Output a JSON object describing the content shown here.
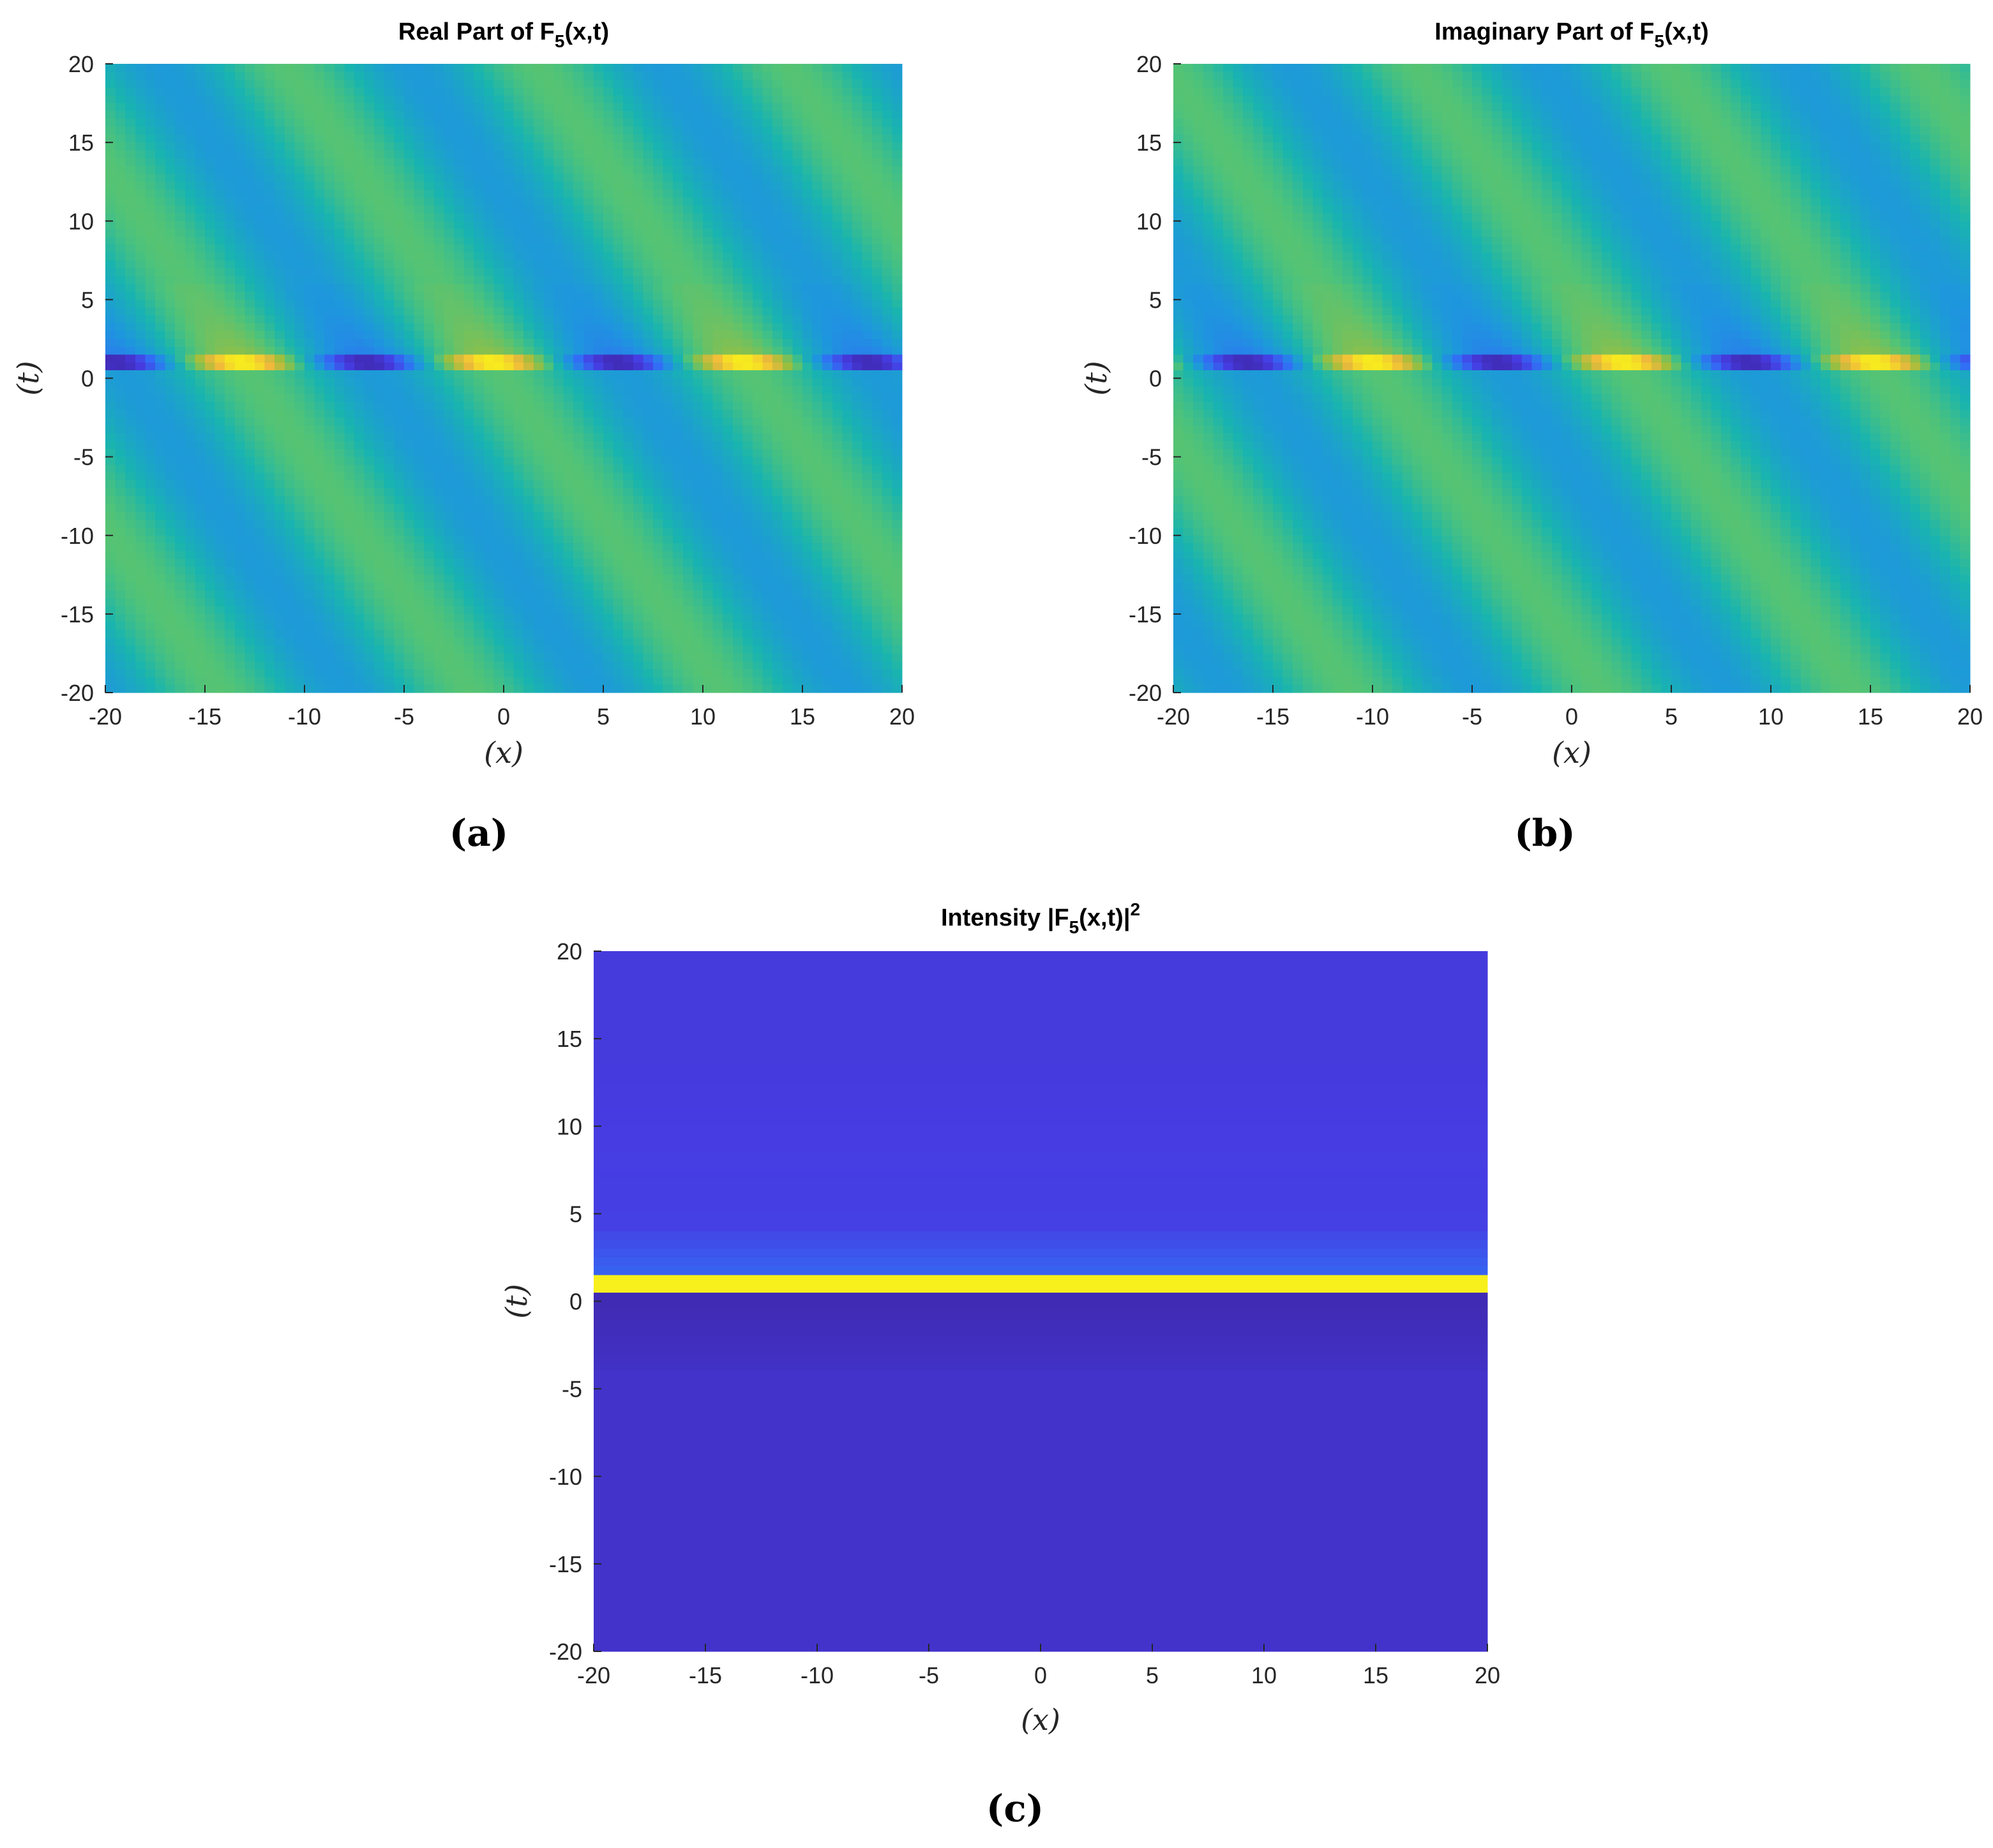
{
  "chart_data": [
    {
      "type": "heatmap",
      "panel": "(a)",
      "title": "Real Part of F5(x,t)",
      "title_parts": {
        "pre": "Real Part of F",
        "sub": "5",
        "post": "(x,t)",
        "sup": ""
      },
      "xlabel": "(x)",
      "ylabel": "(t)",
      "xlim": [
        -20,
        20
      ],
      "ylim": [
        -20,
        20
      ],
      "xticks": [
        -20,
        -15,
        -10,
        -5,
        0,
        5,
        10,
        15,
        20
      ],
      "yticks": [
        -20,
        -15,
        -10,
        -5,
        0,
        5,
        10,
        15,
        20
      ],
      "colormap": "parula",
      "field": {
        "kind": "wave",
        "part": "real",
        "wavelength": 12.6,
        "tilt": 0.55,
        "peak_t": 1.0
      }
    },
    {
      "type": "heatmap",
      "panel": "(b)",
      "title": "Imaginary Part of F5(x,t)",
      "title_parts": {
        "pre": "Imaginary Part of F",
        "sub": "5",
        "post": "(x,t)",
        "sup": ""
      },
      "xlabel": "(x)",
      "ylabel": "(t)",
      "xlim": [
        -20,
        20
      ],
      "ylim": [
        -20,
        20
      ],
      "xticks": [
        -20,
        -15,
        -10,
        -5,
        0,
        5,
        10,
        15,
        20
      ],
      "yticks": [
        -20,
        -15,
        -10,
        -5,
        0,
        5,
        10,
        15,
        20
      ],
      "colormap": "parula",
      "field": {
        "kind": "wave",
        "part": "imag",
        "wavelength": 12.6,
        "tilt": 0.55,
        "peak_t": 1.0
      }
    },
    {
      "type": "heatmap",
      "panel": "(c)",
      "title": "Intensity |F5(x,t)|2",
      "title_parts": {
        "pre": "Intensity |F",
        "sub": "5",
        "post": "(x,t)|",
        "sup": "2"
      },
      "xlabel": "(x)",
      "ylabel": "(t)",
      "xlim": [
        -20,
        20
      ],
      "ylim": [
        -20,
        20
      ],
      "xticks": [
        -20,
        -15,
        -10,
        -5,
        0,
        5,
        10,
        15,
        20
      ],
      "yticks": [
        -20,
        -15,
        -10,
        -5,
        0,
        5,
        10,
        15,
        20
      ],
      "colormap": "parula",
      "field": {
        "kind": "intensity",
        "peak_t": 1.0
      }
    }
  ]
}
